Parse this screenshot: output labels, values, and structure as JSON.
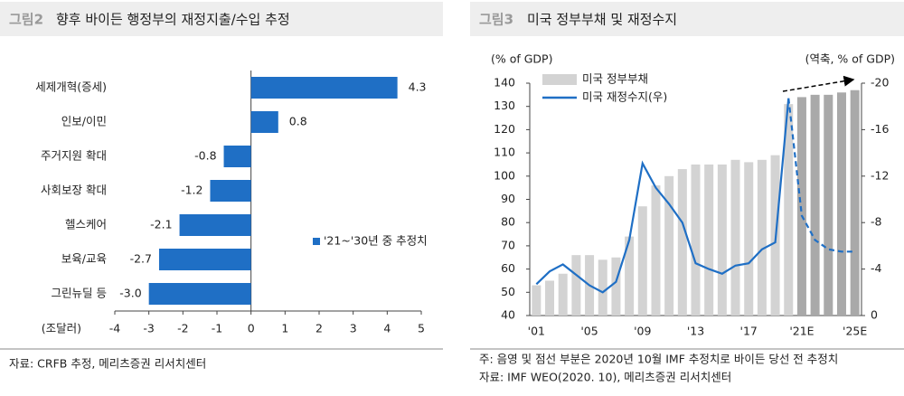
{
  "chart_data": [
    {
      "type": "hbar",
      "figure_label": "그림2",
      "title": "향후 바이든 행정부의 재정지출/수입 추정",
      "categories": [
        "세제개혁(증세)",
        "인보/이민",
        "주거지원 확대",
        "사회보장 확대",
        "헬스케어",
        "보육/교육",
        "그린뉴딜 등"
      ],
      "series": [
        {
          "name": "'21~'30년 중 추정치",
          "color": "#1f6fc5",
          "values": [
            4.3,
            0.8,
            -0.8,
            -1.2,
            -2.1,
            -2.7,
            -3.0
          ],
          "value_labels": [
            "4.3",
            "0.8",
            "-0.8",
            "-1.2",
            "-2.1",
            "-2.7",
            "-3.0"
          ]
        }
      ],
      "xlabel": "(조달러)",
      "xlim": [
        -4,
        5
      ],
      "xticks": [
        -4,
        -3,
        -2,
        -1,
        0,
        1,
        2,
        3,
        4,
        5
      ],
      "source": "자료: CRFB 추정, 메리츠증권 리서치센터"
    },
    {
      "type": "bar_line",
      "figure_label": "그림3",
      "title": "미국 정부부채 및 재정수지",
      "categories": [
        "'01",
        null,
        null,
        null,
        "'05",
        null,
        null,
        null,
        "'09",
        null,
        null,
        null,
        "'13",
        null,
        null,
        null,
        "'17",
        null,
        null,
        null,
        "'21E",
        null,
        null,
        null,
        "'25E"
      ],
      "series": [
        {
          "name": "미국 정부부채",
          "color": "#d3d3d3",
          "forecast_color": "#a9a9a9",
          "forecast_from": 20,
          "values": [
            53,
            55,
            58,
            66,
            66,
            64,
            65,
            74,
            87,
            96,
            100,
            103,
            105,
            105,
            105,
            107,
            106,
            107,
            109,
            131,
            134,
            135,
            135,
            136,
            137
          ]
        },
        {
          "name": "미국 재정수지(우)",
          "color": "#1f6fc5",
          "axis": "y2",
          "dashed_after": 19,
          "values": [
            -2.7,
            -3.8,
            -4.4,
            -3.5,
            -2.6,
            -2.0,
            -2.9,
            -6.5,
            -13.1,
            -11.0,
            -9.6,
            -8.0,
            -4.5,
            -4.0,
            -3.6,
            -4.3,
            -4.5,
            -5.7,
            -6.3,
            -18.7,
            -8.6,
            -6.5,
            -5.7,
            -5.5,
            -5.5
          ]
        }
      ],
      "ylabel": "(% of GDP)",
      "y2label": "(역축, % of GDP)",
      "ylim": [
        40,
        140
      ],
      "yticks": [
        40,
        50,
        60,
        70,
        80,
        90,
        100,
        110,
        120,
        130,
        140
      ],
      "y2lim": [
        0,
        -20
      ],
      "y2ticks": [
        0,
        -4,
        -8,
        -12,
        -16,
        -20
      ],
      "notes": [
        "주: 음영 및 점선 부분은 2020년 10월 IMF 추정치로 바이든 당선 전 추정치",
        "자료: IMF WEO(2020. 10), 메리츠증권 리서치센터"
      ]
    }
  ]
}
